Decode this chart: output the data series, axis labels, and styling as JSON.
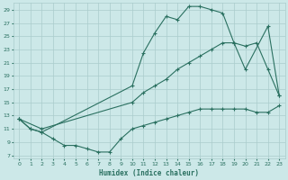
{
  "xlabel": "Humidex (Indice chaleur)",
  "bg_color": "#cce8e8",
  "grid_color": "#aacccc",
  "line_color": "#2a7060",
  "xlim": [
    -0.5,
    23.5
  ],
  "ylim": [
    6.5,
    30
  ],
  "xticks": [
    0,
    1,
    2,
    3,
    4,
    5,
    6,
    7,
    8,
    9,
    10,
    11,
    12,
    13,
    14,
    15,
    16,
    17,
    18,
    19,
    20,
    21,
    22,
    23
  ],
  "yticks": [
    7,
    9,
    11,
    13,
    15,
    17,
    19,
    21,
    23,
    25,
    27,
    29
  ],
  "curve1_x": [
    0,
    1,
    2,
    10,
    11,
    12,
    13,
    14,
    15,
    16,
    17,
    18,
    19,
    20,
    22,
    23
  ],
  "curve1_y": [
    12.5,
    11,
    10.5,
    17.5,
    22.5,
    25.5,
    28,
    27.5,
    29.5,
    29.5,
    29,
    28.5,
    24,
    20,
    26.5,
    16
  ],
  "curve2_x": [
    0,
    2,
    10,
    11,
    12,
    13,
    14,
    15,
    16,
    17,
    18,
    19,
    20,
    21,
    22,
    23
  ],
  "curve2_y": [
    12.5,
    11,
    15,
    16.5,
    17.5,
    18.5,
    20,
    21,
    22,
    23,
    24,
    24,
    23.5,
    24,
    20,
    16
  ],
  "curve3_x": [
    0,
    1,
    2,
    3,
    4,
    5,
    6,
    7,
    8,
    9,
    10,
    11,
    12,
    13,
    14,
    15,
    16,
    17,
    18,
    19,
    20,
    21,
    22,
    23
  ],
  "curve3_y": [
    12.5,
    11,
    10.5,
    9.5,
    8.5,
    8.5,
    8.0,
    7.5,
    7.5,
    9.5,
    11.0,
    11.5,
    12.0,
    12.5,
    13.0,
    13.5,
    14.0,
    14.0,
    14.0,
    14.0,
    14.0,
    13.5,
    13.5,
    14.5
  ]
}
